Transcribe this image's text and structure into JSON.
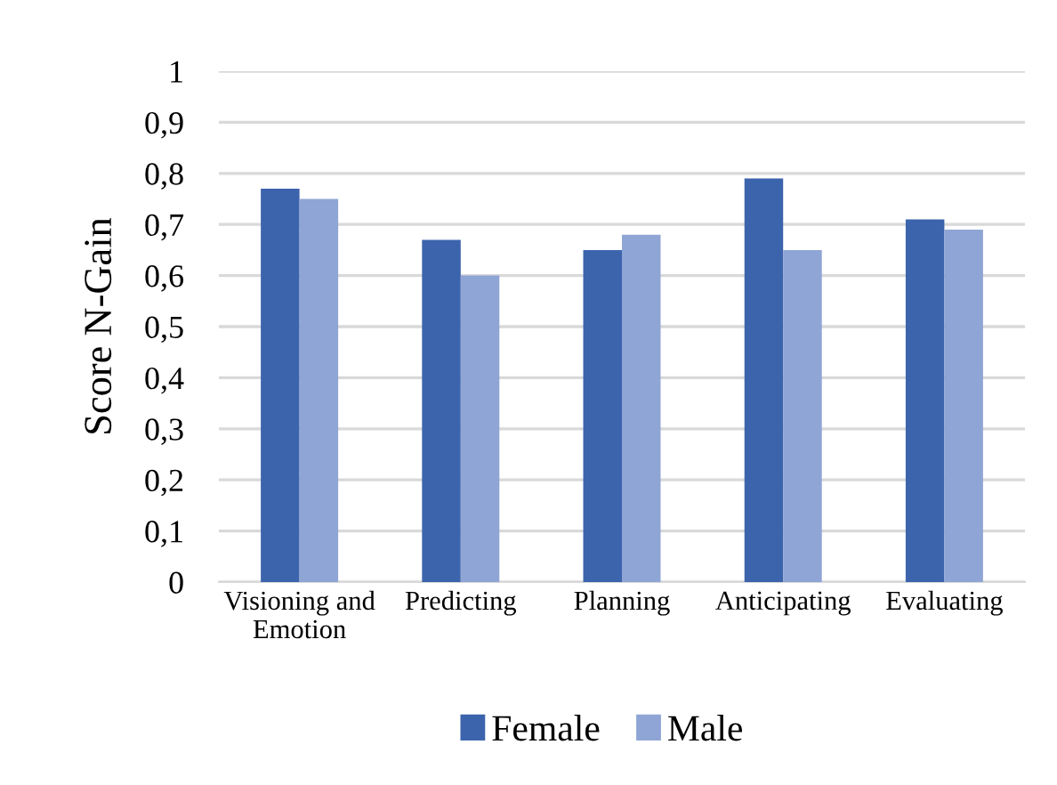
{
  "chart_data": {
    "type": "bar",
    "ylabel": "Score N-Gain",
    "categories": [
      "Visioning and\nEmotion",
      "Predicting",
      "Planning",
      "Anticipating",
      "Evaluating"
    ],
    "series": [
      {
        "name": "Female",
        "color": "#3c64ad",
        "values": [
          0.77,
          0.67,
          0.65,
          0.79,
          0.71
        ]
      },
      {
        "name": "Male",
        "color": "#8fa5d5",
        "values": [
          0.75,
          0.6,
          0.68,
          0.65,
          0.69
        ]
      }
    ],
    "ylim": [
      0,
      1
    ],
    "yticks": [
      0,
      {
        "value": 0.1,
        "label": "0,1"
      },
      {
        "value": 0.2,
        "label": "0,2"
      },
      {
        "value": 0.3,
        "label": "0,3"
      },
      {
        "value": 0.4,
        "label": "0,4"
      },
      {
        "value": 0.5,
        "label": "0,5"
      },
      {
        "value": 0.6,
        "label": "0,6"
      },
      {
        "value": 0.7,
        "label": "0,7"
      },
      {
        "value": 0.8,
        "label": "0,8"
      },
      {
        "value": 0.9,
        "label": "0,9"
      },
      1
    ],
    "grid": "y",
    "legend": "bottom"
  }
}
